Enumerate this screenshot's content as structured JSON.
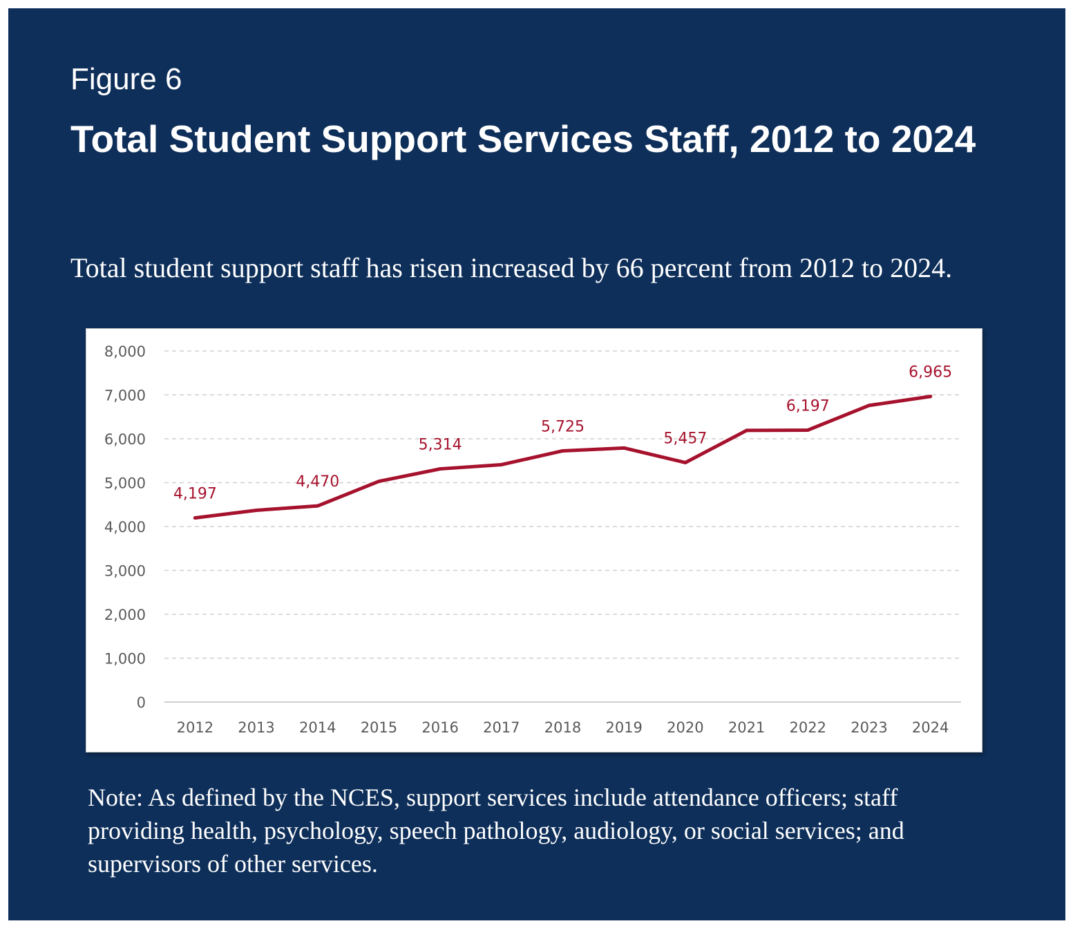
{
  "figure": {
    "label": "Figure 6",
    "title": "Total Student Support Services Staff, 2012 to 2024",
    "subtitle": "Total student support staff has risen increased by 66 percent from 2012 to 2024.",
    "note": "Note: As defined by the NCES, support services include attendance officers; staff providing health, psychology, speech pathology, audiology, or social services; and supervisors of other services."
  },
  "colors": {
    "background": "#0e2f5a",
    "line": "#a6122d",
    "gridline": "#d0d0d0",
    "tick_text": "#595959"
  },
  "chart_data": {
    "type": "line",
    "categories": [
      "2012",
      "2013",
      "2014",
      "2015",
      "2016",
      "2017",
      "2018",
      "2019",
      "2020",
      "2021",
      "2022",
      "2023",
      "2024"
    ],
    "series": [
      {
        "values": [
          4197,
          4370,
          4470,
          5030,
          5314,
          5410,
          5725,
          5790,
          5457,
          6190,
          6197,
          6760,
          6965
        ]
      }
    ],
    "data_labels": [
      {
        "index": 0,
        "text": "4,197"
      },
      {
        "index": 2,
        "text": "4,470"
      },
      {
        "index": 4,
        "text": "5,314"
      },
      {
        "index": 6,
        "text": "5,725"
      },
      {
        "index": 8,
        "text": "5,457"
      },
      {
        "index": 10,
        "text": "6,197"
      },
      {
        "index": 12,
        "text": "6,965"
      }
    ],
    "y_ticks": [
      "0",
      "1,000",
      "2,000",
      "3,000",
      "4,000",
      "5,000",
      "6,000",
      "7,000",
      "8,000"
    ],
    "ylim": [
      0,
      8000
    ],
    "grid": true,
    "legend": "none"
  }
}
